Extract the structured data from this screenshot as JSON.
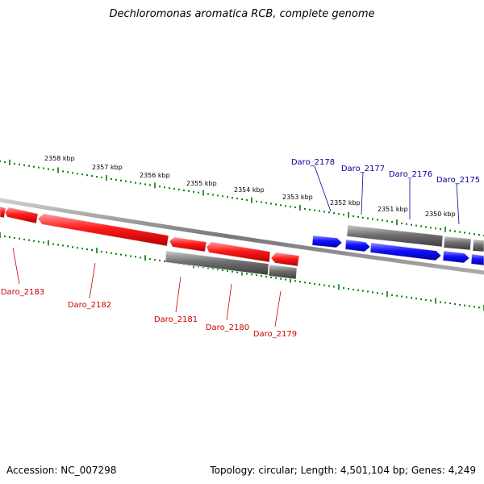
{
  "title": "Dechloromonas aromatica RCB, complete genome",
  "footer": {
    "accession": "Accession: NC_007298",
    "summary": "Topology: circular; Length: 4,501,104 bp; Genes: 4,249"
  },
  "colors": {
    "reverse_strand": "#ff0000",
    "forward_strand": "#0000ff",
    "other_genes": "#707070",
    "ticks": "#008000",
    "label_reverse": "#cc0000",
    "label_forward": "#000099"
  },
  "ruler": {
    "labels": [
      "2358 kbp",
      "2357 kbp",
      "2356 kbp",
      "2355 kbp",
      "2354 kbp",
      "2353 kbp",
      "2352 kbp",
      "2351 kbp",
      "2350 kbp"
    ]
  },
  "gene_labels": {
    "forward": [
      "Daro_2178",
      "Daro_2177",
      "Daro_2176",
      "Daro_2175"
    ],
    "reverse": [
      "Daro_2183",
      "Daro_2182",
      "Daro_2181",
      "Daro_2180",
      "Daro_2179"
    ]
  }
}
